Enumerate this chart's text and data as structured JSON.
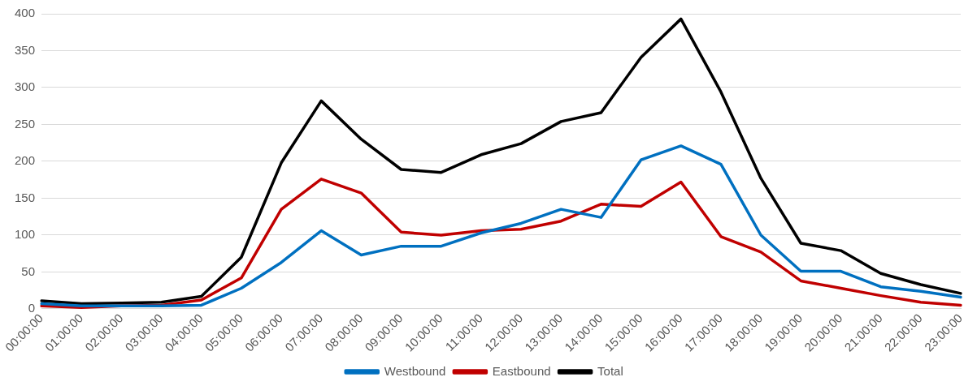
{
  "chart_data": {
    "type": "line",
    "categories": [
      "00:00:00",
      "01:00:00",
      "02:00:00",
      "03:00:00",
      "04:00:00",
      "05:00:00",
      "06:00:00",
      "07:00:00",
      "08:00:00",
      "09:00:00",
      "10:00:00",
      "11:00:00",
      "12:00:00",
      "13:00:00",
      "14:00:00",
      "15:00:00",
      "16:00:00",
      "17:00:00",
      "18:00:00",
      "19:00:00",
      "20:00:00",
      "21:00:00",
      "22:00:00",
      "23:00:00"
    ],
    "series": [
      {
        "name": "Westbound",
        "color": "#0070c0",
        "values": [
          7,
          4,
          4,
          4,
          5,
          28,
          63,
          106,
          73,
          85,
          85,
          103,
          116,
          135,
          124,
          202,
          221,
          196,
          100,
          51,
          51,
          30,
          24,
          16
        ]
      },
      {
        "name": "Eastbound",
        "color": "#c00000",
        "values": [
          4,
          2,
          4,
          5,
          12,
          42,
          135,
          176,
          157,
          104,
          100,
          106,
          108,
          119,
          142,
          139,
          172,
          98,
          77,
          38,
          28,
          18,
          9,
          5
        ]
      },
      {
        "name": "Total",
        "color": "#000000",
        "values": [
          11,
          7,
          8,
          9,
          17,
          70,
          198,
          282,
          230,
          189,
          185,
          209,
          224,
          254,
          266,
          341,
          393,
          294,
          177,
          89,
          79,
          48,
          33,
          21
        ]
      }
    ],
    "ylim": [
      0,
      400
    ],
    "yticks": [
      0,
      50,
      100,
      150,
      200,
      250,
      300,
      350,
      400
    ],
    "grid": "y",
    "legend": "bottom",
    "marker": "none",
    "line_style": "solid"
  }
}
